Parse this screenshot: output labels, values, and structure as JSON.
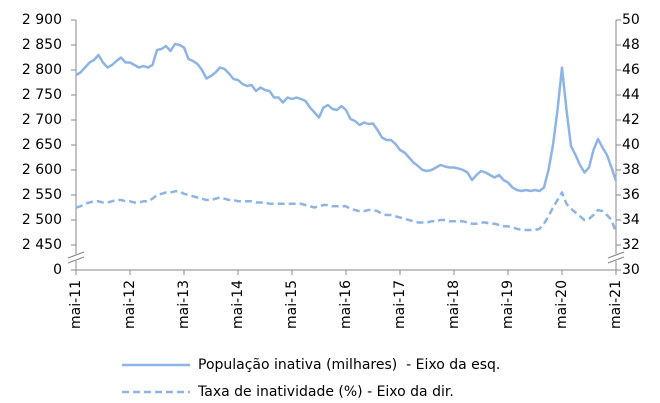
{
  "chart_data": {
    "type": "line",
    "categories": [
      "mai-11",
      null,
      null,
      null,
      null,
      null,
      null,
      null,
      null,
      null,
      null,
      null,
      "mai-12",
      null,
      null,
      null,
      null,
      null,
      null,
      null,
      null,
      null,
      null,
      null,
      "mai-13",
      null,
      null,
      null,
      null,
      null,
      null,
      null,
      null,
      null,
      null,
      null,
      "mai-14",
      null,
      null,
      null,
      null,
      null,
      null,
      null,
      null,
      null,
      null,
      null,
      "mai-15",
      null,
      null,
      null,
      null,
      null,
      null,
      null,
      null,
      null,
      null,
      null,
      "mai-16",
      null,
      null,
      null,
      null,
      null,
      null,
      null,
      null,
      null,
      null,
      null,
      "mai-17",
      null,
      null,
      null,
      null,
      null,
      null,
      null,
      null,
      null,
      null,
      null,
      "mai-18",
      null,
      null,
      null,
      null,
      null,
      null,
      null,
      null,
      null,
      null,
      null,
      "mai-19",
      null,
      null,
      null,
      null,
      null,
      null,
      null,
      null,
      null,
      null,
      null,
      "mai-20",
      null,
      null,
      null,
      null,
      null,
      null,
      null,
      null,
      null,
      null,
      null,
      "mai-21"
    ],
    "series": [
      {
        "name": "População inativa (milhares)  - Eixo da esq.",
        "color": "#8eb4e3",
        "dash": false,
        "axis": "y",
        "values": [
          2790,
          2795,
          2805,
          2815,
          2820,
          2830,
          2815,
          2805,
          2810,
          2818,
          2825,
          2815,
          2815,
          2810,
          2805,
          2808,
          2805,
          2810,
          2840,
          2842,
          2848,
          2838,
          2852,
          2850,
          2845,
          2822,
          2818,
          2812,
          2800,
          2783,
          2788,
          2795,
          2805,
          2802,
          2793,
          2782,
          2780,
          2772,
          2768,
          2770,
          2758,
          2765,
          2760,
          2758,
          2745,
          2745,
          2735,
          2745,
          2742,
          2745,
          2742,
          2738,
          2725,
          2715,
          2705,
          2725,
          2730,
          2722,
          2720,
          2728,
          2720,
          2702,
          2698,
          2690,
          2695,
          2692,
          2693,
          2680,
          2665,
          2660,
          2660,
          2652,
          2640,
          2635,
          2625,
          2615,
          2608,
          2600,
          2598,
          2600,
          2605,
          2610,
          2607,
          2605,
          2605,
          2603,
          2600,
          2595,
          2580,
          2590,
          2598,
          2595,
          2590,
          2585,
          2590,
          2580,
          2575,
          2565,
          2560,
          2558,
          2560,
          2558,
          2560,
          2558,
          2565,
          2600,
          2650,
          2720,
          2805,
          2720,
          2648,
          2630,
          2610,
          2595,
          2605,
          2640,
          2662,
          2645,
          2630,
          2605,
          2578
        ]
      },
      {
        "name": "Taxa de inatividade (%) - Eixo da dir.",
        "color": "#8eb4e3",
        "dash": true,
        "axis": "y2",
        "values": [
          35.0,
          35.1,
          35.3,
          35.4,
          35.5,
          35.5,
          35.4,
          35.4,
          35.5,
          35.6,
          35.6,
          35.5,
          35.5,
          35.4,
          35.4,
          35.5,
          35.5,
          35.7,
          36.0,
          36.1,
          36.2,
          36.2,
          36.3,
          36.3,
          36.1,
          36.0,
          35.9,
          35.8,
          35.7,
          35.6,
          35.6,
          35.7,
          35.8,
          35.7,
          35.6,
          35.6,
          35.5,
          35.5,
          35.5,
          35.5,
          35.4,
          35.4,
          35.4,
          35.3,
          35.3,
          35.3,
          35.3,
          35.3,
          35.3,
          35.3,
          35.3,
          35.2,
          35.1,
          35.0,
          35.1,
          35.2,
          35.2,
          35.1,
          35.1,
          35.1,
          35.1,
          34.9,
          34.8,
          34.7,
          34.7,
          34.8,
          34.8,
          34.7,
          34.5,
          34.4,
          34.4,
          34.3,
          34.2,
          34.1,
          34.0,
          33.9,
          33.8,
          33.8,
          33.8,
          33.9,
          33.9,
          34.0,
          34.0,
          33.9,
          33.9,
          33.9,
          33.9,
          33.8,
          33.7,
          33.7,
          33.8,
          33.8,
          33.7,
          33.7,
          33.6,
          33.5,
          33.5,
          33.4,
          33.3,
          33.2,
          33.2,
          33.2,
          33.2,
          33.3,
          33.7,
          34.3,
          35.0,
          35.6,
          36.2,
          35.3,
          34.9,
          34.6,
          34.3,
          34.0,
          34.1,
          34.4,
          34.8,
          34.7,
          34.4,
          34.0,
          33.0
        ]
      }
    ],
    "ylim": [
      0,
      2900
    ],
    "yticks": [
      0,
      {
        "value": 2450,
        "label": "2 450"
      },
      {
        "value": 2500,
        "label": "2 500"
      },
      {
        "value": 2550,
        "label": "2 550"
      },
      {
        "value": 2600,
        "label": "2 600"
      },
      {
        "value": 2650,
        "label": "2 650"
      },
      {
        "value": 2700,
        "label": "2 700"
      },
      {
        "value": 2750,
        "label": "2 750"
      },
      {
        "value": 2800,
        "label": "2 800"
      },
      {
        "value": 2850,
        "label": "2 850"
      },
      {
        "value": 2900,
        "label": "2 900"
      }
    ],
    "y_axis_break": true,
    "y2lim": [
      30,
      50
    ],
    "y2ticks": [
      30,
      32,
      34,
      36,
      38,
      40,
      42,
      44,
      46,
      48,
      50
    ],
    "grid": false
  }
}
